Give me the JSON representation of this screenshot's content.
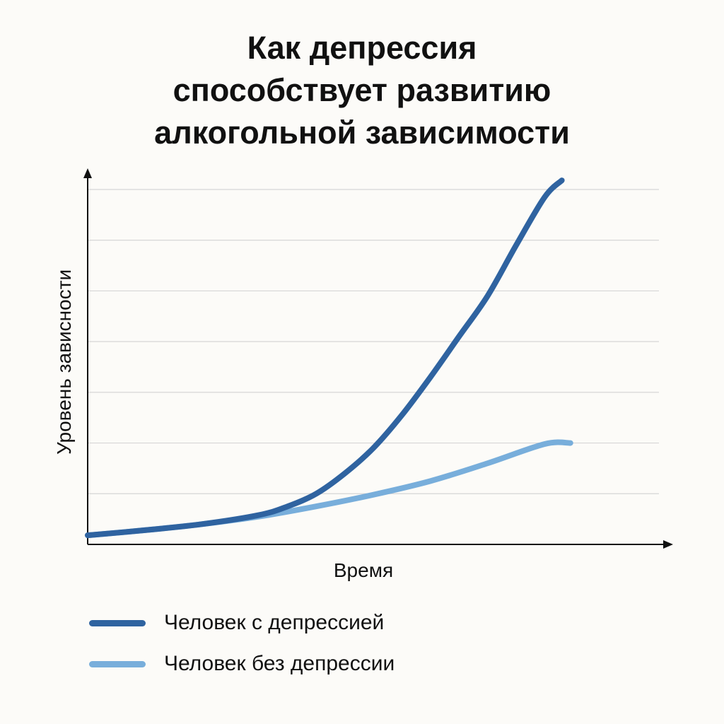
{
  "chart_data": {
    "type": "line",
    "title_lines": [
      "Как депрессия",
      "способствует развитию",
      "алкогольной зависимости"
    ],
    "xlabel": "Время",
    "ylabel": "Уровень зависности",
    "grid": true,
    "xlim": [
      0,
      10
    ],
    "ylim": [
      0,
      7
    ],
    "legend_position": "bottom-left",
    "series": [
      {
        "name": "Человек с депрессией",
        "color": "#2f63a0",
        "x": [
          0,
          1,
          2,
          3,
          3.5,
          4,
          4.5,
          5,
          5.5,
          6,
          6.5,
          7,
          7.5,
          8,
          8.3
        ],
        "y": [
          0.18,
          0.28,
          0.4,
          0.58,
          0.75,
          1.0,
          1.4,
          1.9,
          2.55,
          3.3,
          4.1,
          4.9,
          5.9,
          6.85,
          7.18
        ]
      },
      {
        "name": "Человек без депрессии",
        "color": "#78aedb",
        "x": [
          0,
          1,
          2,
          3,
          4,
          5,
          6,
          7,
          8,
          8.45
        ],
        "y": [
          0.18,
          0.28,
          0.4,
          0.55,
          0.75,
          0.98,
          1.25,
          1.6,
          1.98,
          2.0
        ]
      }
    ]
  }
}
